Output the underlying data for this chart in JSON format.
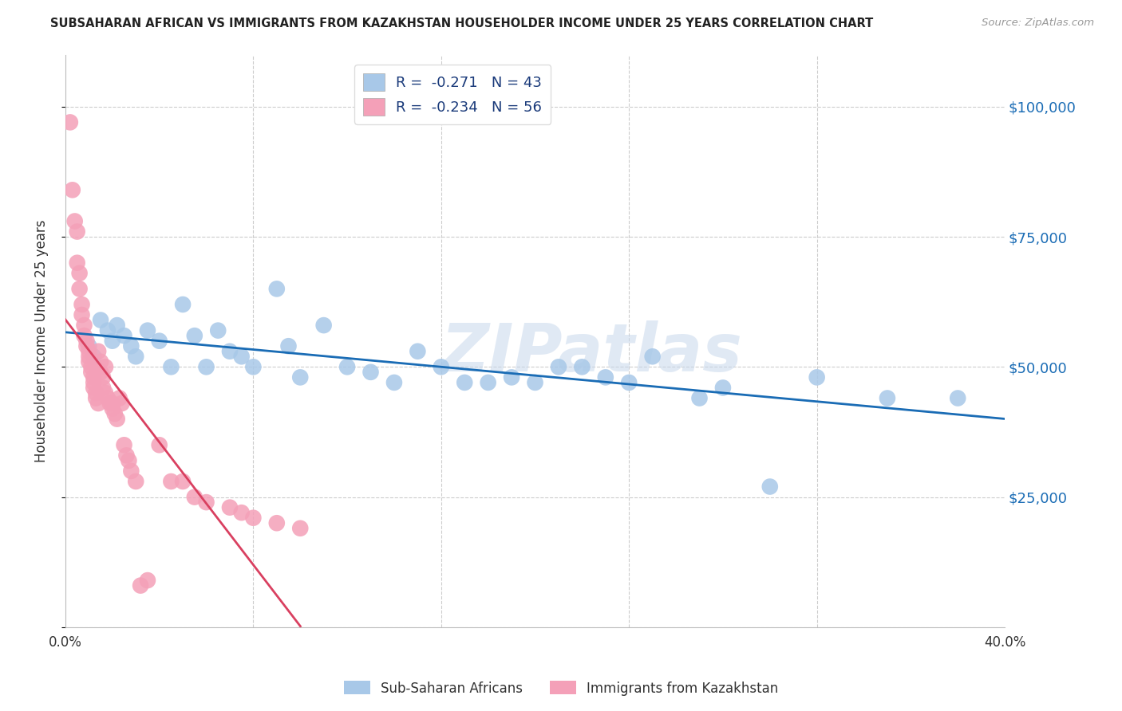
{
  "title": "SUBSAHARAN AFRICAN VS IMMIGRANTS FROM KAZAKHSTAN HOUSEHOLDER INCOME UNDER 25 YEARS CORRELATION CHART",
  "source": "Source: ZipAtlas.com",
  "ylabel": "Householder Income Under 25 years",
  "xlim": [
    0.0,
    40.0
  ],
  "ylim": [
    0,
    110000
  ],
  "yticks": [
    0,
    25000,
    50000,
    75000,
    100000
  ],
  "ytick_labels_right": [
    "",
    "$25,000",
    "$50,000",
    "$75,000",
    "$100,000"
  ],
  "xtick_positions": [
    0.0,
    8.0,
    16.0,
    24.0,
    32.0,
    40.0
  ],
  "xtick_labels": [
    "0.0%",
    "",
    "",
    "",
    "",
    "40.0%"
  ],
  "blue_R": -0.271,
  "blue_N": 43,
  "pink_R": -0.234,
  "pink_N": 56,
  "blue_color": "#a8c8e8",
  "pink_color": "#f4a0b8",
  "blue_line_color": "#1a6cb5",
  "pink_line_color": "#d94060",
  "watermark": "ZIPatlas",
  "legend_label_blue": "Sub-Saharan Africans",
  "legend_label_pink": "Immigrants from Kazakhstan",
  "blue_scatter_x": [
    1.0,
    1.2,
    1.5,
    1.8,
    2.0,
    2.2,
    2.5,
    2.8,
    3.0,
    3.5,
    4.0,
    4.5,
    5.0,
    5.5,
    6.0,
    6.5,
    7.0,
    7.5,
    8.0,
    9.0,
    9.5,
    10.0,
    11.0,
    12.0,
    13.0,
    14.0,
    15.0,
    16.0,
    17.0,
    18.0,
    19.0,
    20.0,
    21.0,
    22.0,
    23.0,
    24.0,
    25.0,
    27.0,
    28.0,
    30.0,
    32.0,
    35.0,
    38.0
  ],
  "blue_scatter_y": [
    54000,
    52000,
    59000,
    57000,
    55000,
    58000,
    56000,
    54000,
    52000,
    57000,
    55000,
    50000,
    62000,
    56000,
    50000,
    57000,
    53000,
    52000,
    50000,
    65000,
    54000,
    48000,
    58000,
    50000,
    49000,
    47000,
    53000,
    50000,
    47000,
    47000,
    48000,
    47000,
    50000,
    50000,
    48000,
    47000,
    52000,
    44000,
    46000,
    27000,
    48000,
    44000,
    44000
  ],
  "pink_scatter_x": [
    0.2,
    0.3,
    0.4,
    0.5,
    0.5,
    0.6,
    0.6,
    0.7,
    0.7,
    0.8,
    0.8,
    0.9,
    0.9,
    1.0,
    1.0,
    1.0,
    1.1,
    1.1,
    1.2,
    1.2,
    1.2,
    1.3,
    1.3,
    1.4,
    1.4,
    1.5,
    1.5,
    1.6,
    1.6,
    1.7,
    1.7,
    1.8,
    1.9,
    2.0,
    2.0,
    2.1,
    2.2,
    2.3,
    2.4,
    2.5,
    2.6,
    2.7,
    2.8,
    3.0,
    3.2,
    3.5,
    4.0,
    4.5,
    5.0,
    5.5,
    6.0,
    7.0,
    7.5,
    8.0,
    9.0,
    10.0
  ],
  "pink_scatter_y": [
    97000,
    84000,
    78000,
    76000,
    70000,
    68000,
    65000,
    62000,
    60000,
    58000,
    56000,
    55000,
    54000,
    53000,
    52000,
    51000,
    50000,
    49000,
    48000,
    47000,
    46000,
    45000,
    44000,
    43000,
    53000,
    51000,
    49000,
    48000,
    46000,
    50000,
    45000,
    44000,
    43000,
    43000,
    42000,
    41000,
    40000,
    44000,
    43000,
    35000,
    33000,
    32000,
    30000,
    28000,
    8000,
    9000,
    35000,
    28000,
    28000,
    25000,
    24000,
    23000,
    22000,
    21000,
    20000,
    19000
  ]
}
